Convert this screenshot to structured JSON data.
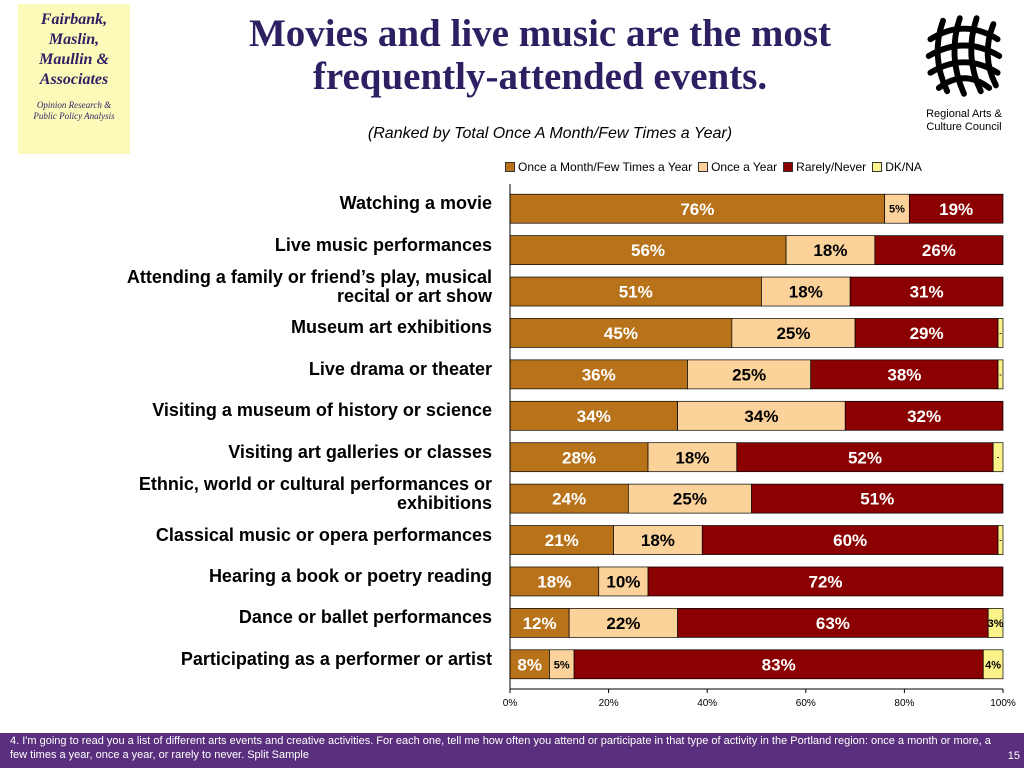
{
  "firm": {
    "name_lines": [
      "Fairbank,",
      "Maslin,",
      "Maullin &",
      "Associates"
    ],
    "tagline_lines": [
      "Opinion Research &",
      "Public Policy Analysis"
    ]
  },
  "title_lines": [
    "Movies and live music are the most",
    "frequently-attended events."
  ],
  "subtitle": "(Ranked by Total Once A Month/Few Times a Year)",
  "partner": {
    "name_lines": [
      "Regional Arts &",
      "Culture Council"
    ],
    "logo_icon": "woven-lattice-logo"
  },
  "note": "4.  I'm going to read you a list of different arts events and creative activities. For each one, tell me how often you attend or participate in that type of activity in the Portland region:  once a month or more, a few times a year, once a year, or rarely to never.  Split Sample",
  "page_number": "15",
  "chart_data": {
    "type": "bar",
    "orientation": "horizontal",
    "stacked": true,
    "categories": [
      [
        "Watching a movie"
      ],
      [
        "Live music performances"
      ],
      [
        "Attending a family or friend’s play, musical",
        "recital or art show"
      ],
      [
        "Museum art exhibitions"
      ],
      [
        "Live drama or theater"
      ],
      [
        "Visiting a museum of history or science"
      ],
      [
        "Visiting art galleries or classes"
      ],
      [
        "Ethnic, world or cultural performances or",
        "exhibitions"
      ],
      [
        "Classical music or opera performances"
      ],
      [
        "Hearing a book or poetry reading"
      ],
      [
        "Dance or ballet performances"
      ],
      [
        "Participating as a performer or artist"
      ]
    ],
    "series": [
      {
        "name": "Once a Month/Few Times a Year",
        "color": "#b8731a",
        "values": [
          76,
          56,
          51,
          45,
          36,
          34,
          28,
          24,
          21,
          18,
          12,
          8
        ]
      },
      {
        "name": "Once a Year",
        "color": "#fbd29a",
        "values": [
          5,
          18,
          18,
          25,
          25,
          34,
          18,
          25,
          18,
          10,
          22,
          5
        ]
      },
      {
        "name": "Rarely/Never",
        "color": "#8b0000",
        "values": [
          19,
          26,
          31,
          29,
          38,
          32,
          52,
          51,
          60,
          72,
          63,
          83
        ]
      },
      {
        "name": "DK/NA",
        "color": "#fbf28a",
        "values": [
          0,
          0,
          0,
          1,
          1,
          0,
          2,
          0,
          1,
          0,
          3,
          4
        ]
      }
    ],
    "data_labels": [
      [
        "76%",
        "5%",
        "19%",
        ""
      ],
      [
        "56%",
        "18%",
        "26%",
        ""
      ],
      [
        "51%",
        "18%",
        "31%",
        ""
      ],
      [
        "45%",
        "25%",
        "29%",
        "-"
      ],
      [
        "36%",
        "25%",
        "38%",
        "-"
      ],
      [
        "34%",
        "34%",
        "32%",
        ""
      ],
      [
        "28%",
        "18%",
        "52%",
        "-"
      ],
      [
        "24%",
        "25%",
        "51%",
        ""
      ],
      [
        "21%",
        "18%",
        "60%",
        "-"
      ],
      [
        "18%",
        "10%",
        "72%",
        ""
      ],
      [
        "12%",
        "22%",
        "63%",
        "3%"
      ],
      [
        "8%",
        "5%",
        "83%",
        "4%"
      ]
    ],
    "x_ticks": [
      "0%",
      "20%",
      "40%",
      "60%",
      "80%",
      "100%"
    ],
    "xlim": [
      0,
      100
    ],
    "legend_position": "top"
  }
}
